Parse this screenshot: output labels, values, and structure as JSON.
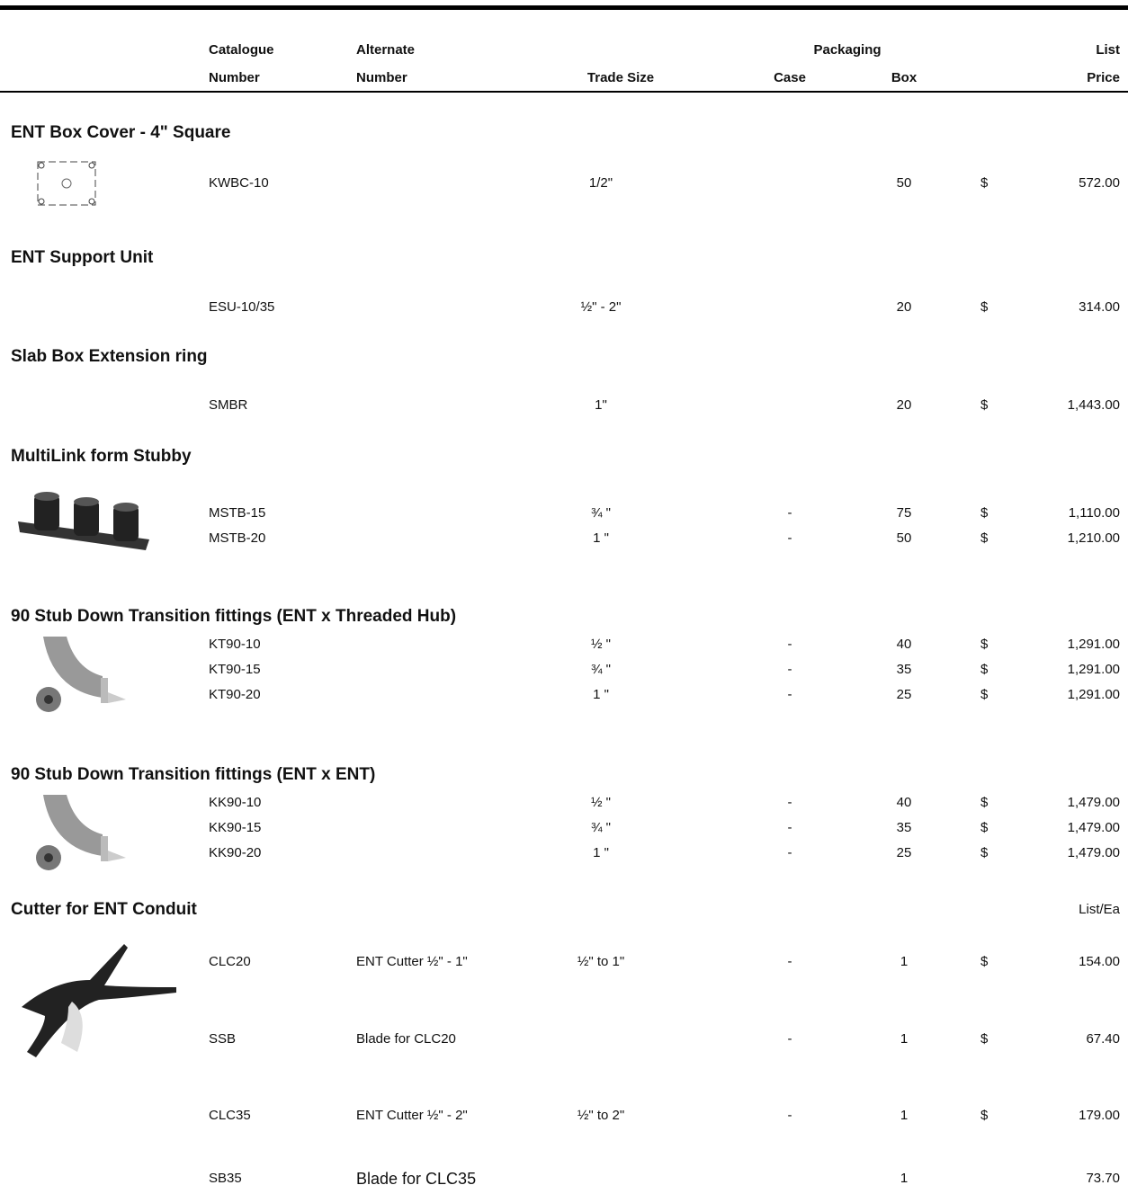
{
  "header": {
    "catalogue": [
      "Catalogue",
      "Number"
    ],
    "alternate": [
      "Alternate",
      "Number"
    ],
    "trade_size": "Trade Size",
    "packaging": "Packaging",
    "case": "Case",
    "box": "Box",
    "list_price": [
      "List",
      "Price"
    ]
  },
  "sections": [
    {
      "title": "ENT Box Cover - 4\" Square",
      "rows": [
        {
          "catalogue": "KWBC-10",
          "trade_size": "1/2\"",
          "box": 50,
          "currency": "$",
          "price": "572.00"
        }
      ]
    },
    {
      "title": "ENT Support Unit",
      "rows": [
        {
          "catalogue": "ESU-10/35",
          "trade_size": "½\" - 2\"",
          "box": 20,
          "currency": "$",
          "price": "314.00"
        }
      ]
    },
    {
      "title": "Slab Box Extension ring",
      "rows": [
        {
          "catalogue": "SMBR",
          "trade_size": "1\"",
          "box": 20,
          "currency": "$",
          "price": "1,443.00"
        }
      ]
    },
    {
      "title": "MultiLink form Stubby",
      "rows": [
        {
          "catalogue": "MSTB-15",
          "trade_size": "¾ \"",
          "case": "-",
          "box": 75,
          "currency": "$",
          "price": "1,110.00"
        },
        {
          "catalogue": "MSTB-20",
          "trade_size": "1 \"",
          "case": "-",
          "box": 50,
          "currency": "$",
          "price": "1,210.00"
        }
      ]
    },
    {
      "title": "90 Stub Down Transition fittings (ENT x Threaded Hub)",
      "rows": [
        {
          "catalogue": "KT90-10",
          "trade_size": "½ \"",
          "case": "-",
          "box": 40,
          "currency": "$",
          "price": "1,291.00"
        },
        {
          "catalogue": "KT90-15",
          "trade_size": "¾ \"",
          "case": "-",
          "box": 35,
          "currency": "$",
          "price": "1,291.00"
        },
        {
          "catalogue": "KT90-20",
          "trade_size": "1 \"",
          "case": "-",
          "box": 25,
          "currency": "$",
          "price": "1,291.00"
        }
      ]
    },
    {
      "title": "90 Stub Down Transition fittings (ENT x ENT)",
      "rows": [
        {
          "catalogue": "KK90-10",
          "trade_size": "½ \"",
          "case": "-",
          "box": 40,
          "currency": "$",
          "price": "1,479.00"
        },
        {
          "catalogue": "KK90-15",
          "trade_size": "¾ \"",
          "case": "-",
          "box": 35,
          "currency": "$",
          "price": "1,479.00"
        },
        {
          "catalogue": "KK90-20",
          "trade_size": "1 \"",
          "case": "-",
          "box": 25,
          "currency": "$",
          "price": "1,479.00"
        }
      ]
    },
    {
      "title": "Cutter for ENT Conduit",
      "price_note": "List/Ea",
      "rows": [
        {
          "catalogue": "CLC20",
          "alternate": "ENT Cutter ½\" - 1\"",
          "trade_size": "½\" to 1\"",
          "case": "-",
          "box": 1,
          "currency": "$",
          "price": "154.00"
        },
        {
          "catalogue": "SSB",
          "alternate": "Blade for CLC20",
          "case": "-",
          "box": 1,
          "currency": "$",
          "price": "67.40"
        },
        {
          "catalogue": "CLC35",
          "alternate": "ENT Cutter ½\" - 2\"",
          "trade_size": "½\" to 2\"",
          "case": "-",
          "box": 1,
          "currency": "$",
          "price": "179.00"
        },
        {
          "catalogue": "SB35",
          "alternate": "Blade for CLC35",
          "box": 1,
          "price": "73.70"
        }
      ]
    }
  ]
}
